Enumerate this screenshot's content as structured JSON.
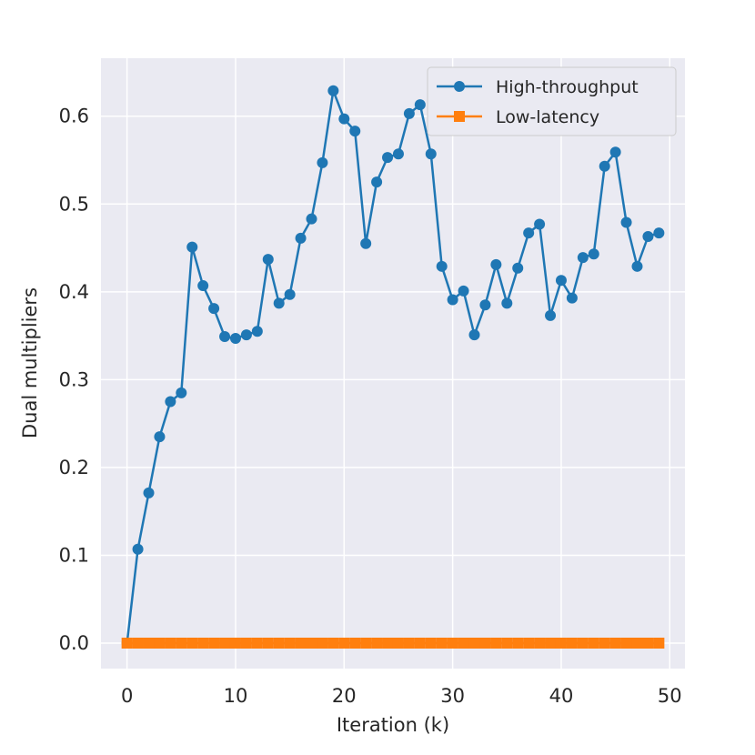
{
  "chart_data": {
    "type": "line",
    "title": "",
    "xlabel": "Iteration (k)",
    "ylabel": "Dual multipliers",
    "xlim": [
      -2.4,
      51.4
    ],
    "ylim": [
      -0.029,
      0.666
    ],
    "xticks": [
      0,
      10,
      20,
      30,
      40,
      50
    ],
    "yticks": [
      0.0,
      0.1,
      0.2,
      0.3,
      0.4,
      0.5,
      0.6
    ],
    "xtick_labels": [
      "0",
      "10",
      "20",
      "30",
      "40",
      "50"
    ],
    "ytick_labels": [
      "0.0",
      "0.1",
      "0.2",
      "0.3",
      "0.4",
      "0.5",
      "0.6"
    ],
    "grid": true,
    "legend_position": "top-right",
    "x": [
      0,
      1,
      2,
      3,
      4,
      5,
      6,
      7,
      8,
      9,
      10,
      11,
      12,
      13,
      14,
      15,
      16,
      17,
      18,
      19,
      20,
      21,
      22,
      23,
      24,
      25,
      26,
      27,
      28,
      29,
      30,
      31,
      32,
      33,
      34,
      35,
      36,
      37,
      38,
      39,
      40,
      41,
      42,
      43,
      44,
      45,
      46,
      47,
      48,
      49
    ],
    "series": [
      {
        "name": "High-throughput",
        "color": "#1f77b4",
        "marker": "circle",
        "values": [
          0.0,
          0.107,
          0.171,
          0.235,
          0.275,
          0.285,
          0.451,
          0.407,
          0.381,
          0.349,
          0.347,
          0.351,
          0.355,
          0.437,
          0.387,
          0.397,
          0.461,
          0.483,
          0.547,
          0.629,
          0.597,
          0.583,
          0.455,
          0.525,
          0.553,
          0.557,
          0.603,
          0.613,
          0.557,
          0.429,
          0.391,
          0.401,
          0.351,
          0.385,
          0.431,
          0.387,
          0.427,
          0.467,
          0.477,
          0.373,
          0.413,
          0.393,
          0.439,
          0.443,
          0.543,
          0.559,
          0.479,
          0.429,
          0.463,
          0.467
        ]
      },
      {
        "name": "Low-latency",
        "color": "#ff7f0e",
        "marker": "square",
        "values": [
          0,
          0,
          0,
          0,
          0,
          0,
          0,
          0,
          0,
          0,
          0,
          0,
          0,
          0,
          0,
          0,
          0,
          0,
          0,
          0,
          0,
          0,
          0,
          0,
          0,
          0,
          0,
          0,
          0,
          0,
          0,
          0,
          0,
          0,
          0,
          0,
          0,
          0,
          0,
          0,
          0,
          0,
          0,
          0,
          0,
          0,
          0,
          0,
          0,
          0
        ]
      }
    ]
  }
}
